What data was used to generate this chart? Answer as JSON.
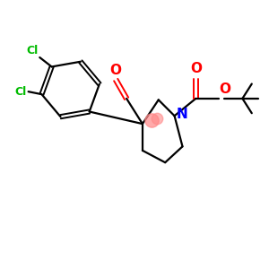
{
  "background_color": "#ffffff",
  "bond_color": "#000000",
  "cl_color": "#00bb00",
  "n_color": "#0000ff",
  "o_color": "#ff0000",
  "figsize": [
    3.0,
    3.0
  ],
  "dpi": 100,
  "xlim": [
    0,
    10
  ],
  "ylim": [
    0,
    10
  ]
}
